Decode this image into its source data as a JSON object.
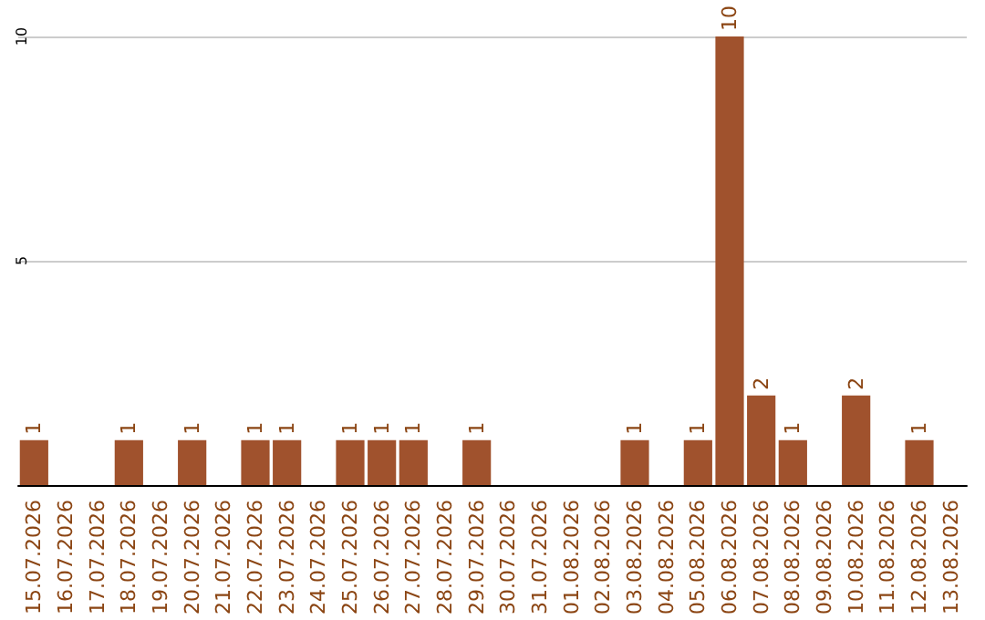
{
  "chart_data": {
    "type": "bar",
    "categories": [
      "15.07.2026",
      "16.07.2026",
      "17.07.2026",
      "18.07.2026",
      "19.07.2026",
      "20.07.2026",
      "21.07.2026",
      "22.07.2026",
      "23.07.2026",
      "24.07.2026",
      "25.07.2026",
      "26.07.2026",
      "27.07.2026",
      "28.07.2026",
      "29.07.2026",
      "30.07.2026",
      "31.07.2026",
      "01.08.2026",
      "02.08.2026",
      "03.08.2026",
      "04.08.2026",
      "05.08.2026",
      "06.08.2026",
      "07.08.2026",
      "08.08.2026",
      "09.08.2026",
      "10.08.2026",
      "11.08.2026",
      "12.08.2026",
      "13.08.2026"
    ],
    "values": [
      1,
      0,
      0,
      1,
      0,
      1,
      0,
      1,
      1,
      0,
      1,
      1,
      1,
      0,
      1,
      0,
      0,
      0,
      0,
      1,
      0,
      1,
      10,
      2,
      1,
      0,
      2,
      0,
      1,
      0
    ],
    "value_labels": [
      "1",
      null,
      null,
      "1",
      null,
      "1",
      null,
      "1",
      "1",
      null,
      "1",
      "1",
      "1",
      null,
      "1",
      null,
      null,
      null,
      null,
      "1",
      null,
      "1",
      "10",
      "2",
      "1",
      null,
      "2",
      null,
      "1",
      null
    ],
    "color": "#a0522d",
    "ylim": [
      0,
      10
    ],
    "yticks": [
      {
        "value": 0,
        "label": null
      },
      5,
      10
    ],
    "grid": "y"
  }
}
